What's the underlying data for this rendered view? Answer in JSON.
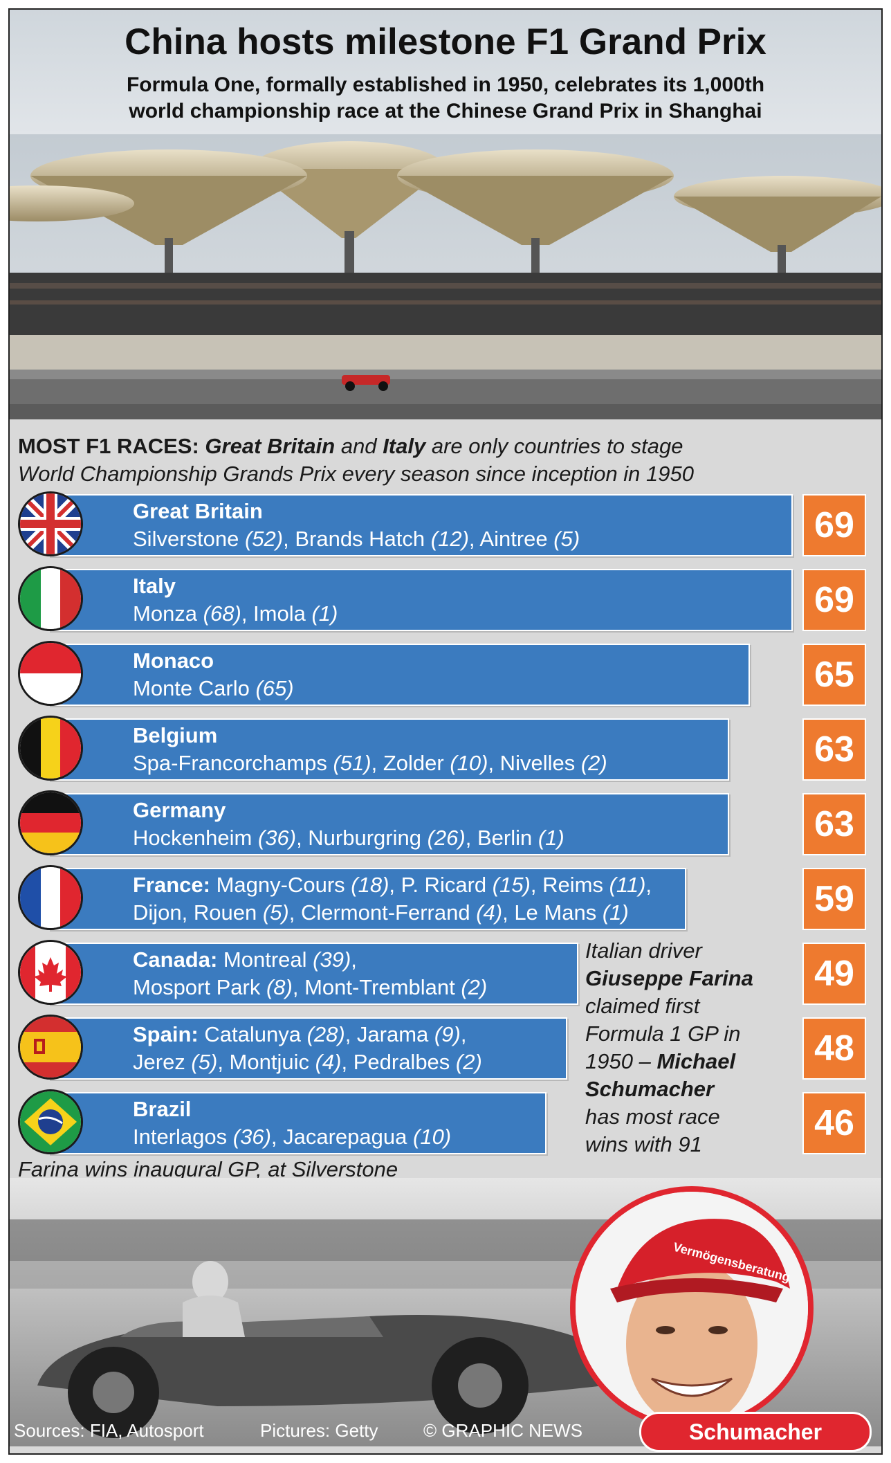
{
  "header": {
    "title": "China hosts milestone F1 Grand Prix",
    "subtitle_line1": "Formula One, formally established in 1950, celebrates its 1,000th",
    "subtitle_line2": "world championship race at the Chinese Grand Prix in Shanghai"
  },
  "chart_heading": {
    "label": "MOST F1 RACES:",
    "gb": "Great Britain",
    "and": "and",
    "italy": "Italy",
    "rest": "are only countries to stage",
    "line2": "World Championship Grands Prix every season since inception in 1950"
  },
  "chart_data": {
    "type": "bar",
    "orientation": "horizontal",
    "categories": [
      "Great Britain",
      "Italy",
      "Monaco",
      "Belgium",
      "Germany",
      "France",
      "Canada",
      "Spain",
      "Brazil"
    ],
    "values": [
      69,
      69,
      65,
      63,
      63,
      59,
      49,
      48,
      46
    ],
    "rows": [
      {
        "country": "Great Britain",
        "suffix": "",
        "line1_after": "",
        "line2": "Silverstone (52), Brands Hatch (12), Aintree (5)",
        "value": "69",
        "flag": "uk-flag-icon"
      },
      {
        "country": "Italy",
        "suffix": "",
        "line1_after": "",
        "line2": "Monza (68), Imola (1)",
        "value": "69",
        "flag": "italy-flag-icon"
      },
      {
        "country": "Monaco",
        "suffix": "",
        "line1_after": "",
        "line2": "Monte Carlo (65)",
        "value": "65",
        "flag": "monaco-flag-icon"
      },
      {
        "country": "Belgium",
        "suffix": "",
        "line1_after": "",
        "line2": "Spa-Francorchamps (51), Zolder (10), Nivelles (2)",
        "value": "63",
        "flag": "belgium-flag-icon"
      },
      {
        "country": "Germany",
        "suffix": "",
        "line1_after": "",
        "line2": "Hockenheim (36), Nurburgring (26), Berlin (1)",
        "value": "63",
        "flag": "germany-flag-icon"
      },
      {
        "country": "France",
        "suffix": ":",
        "line1_after": " Magny-Cours (18), P. Ricard (15), Reims (11),",
        "line2": "Dijon, Rouen (5), Clermont-Ferrand (4), Le Mans (1)",
        "value": "59",
        "flag": "france-flag-icon"
      },
      {
        "country": "Canada",
        "suffix": ":",
        "line1_after": " Montreal (39),",
        "line2": "Mosport Park (8), Mont-Tremblant (2)",
        "value": "49",
        "flag": "canada-flag-icon"
      },
      {
        "country": "Spain",
        "suffix": ":",
        "line1_after": " Catalunya (28), Jarama (9),",
        "line2": "Jerez (5), Montjuic (4), Pedralbes (2)",
        "value": "48",
        "flag": "spain-flag-icon"
      },
      {
        "country": "Brazil",
        "suffix": "",
        "line1_after": "",
        "line2": "Interlagos (36), Jacarepagua (10)",
        "value": "46",
        "flag": "brazil-flag-icon"
      }
    ],
    "colors": {
      "bar": "#3b7bbf",
      "value_box": "#ee7a2f"
    }
  },
  "note": {
    "line1": "Italian driver",
    "line2": "Giuseppe Farina",
    "line3": "claimed first",
    "line4": "Formula 1 GP in",
    "line5a": "1950 – ",
    "line5b": "Michael",
    "line6": "Schumacher",
    "line7": "has most race",
    "line8": "wins with 91"
  },
  "farina_caption": "Farina wins inaugural GP, at Silverstone",
  "schumacher_label": "Schumacher",
  "cap_text": "Vermögensberatung",
  "footer": {
    "sources": "Sources: FIA, Autosport",
    "pictures": "Pictures: Getty",
    "credit": "© GRAPHIC NEWS"
  }
}
